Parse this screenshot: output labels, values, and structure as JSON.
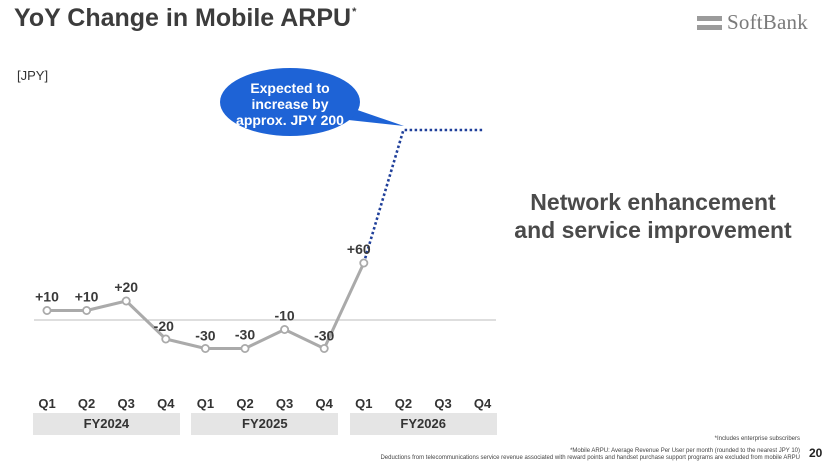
{
  "header": {
    "title": "YoY Change in Mobile ARPU",
    "title_marker": "*",
    "logo_text": "SoftBank"
  },
  "callout": {
    "lines": [
      "Expected to",
      "increase by",
      "approx. JPY 200"
    ],
    "color": "#1e63d6"
  },
  "message": {
    "lines": [
      "Network enhancement",
      "and service improvement"
    ]
  },
  "chart_data": {
    "type": "line",
    "ylabel": "[JPY]",
    "categories": [
      "Q1",
      "Q2",
      "Q3",
      "Q4",
      "Q1",
      "Q2",
      "Q3",
      "Q4",
      "Q1",
      "Q2",
      "Q3",
      "Q4"
    ],
    "groups": [
      {
        "label": "FY2024",
        "start": 0,
        "end": 3
      },
      {
        "label": "FY2025",
        "start": 4,
        "end": 7
      },
      {
        "label": "FY2026",
        "start": 8,
        "end": 11
      }
    ],
    "series": [
      {
        "values": [
          10,
          10,
          20,
          -20,
          -30,
          -30,
          -10,
          -30,
          60,
          null,
          null,
          null
        ],
        "labels": [
          "+10",
          "+10",
          "+20",
          "-20",
          "-30",
          "-30",
          "-10",
          "-30",
          "+60",
          "",
          "",
          ""
        ],
        "color": "#aaaaaa"
      },
      {
        "style": "dotted",
        "values": [
          null,
          null,
          null,
          null,
          null,
          null,
          null,
          null,
          60,
          200,
          200,
          200
        ],
        "color": "#1f3f9a"
      }
    ],
    "baseline": 0
  },
  "footnotes": [
    "*Includes enterprise subscribers",
    "*Mobile ARPU: Average Revenue Per User per month (rounded to the nearest JPY 10)",
    "Deductions from telecommunications service revenue associated with reward points and handset purchase support programs are excluded from mobile ARPU"
  ],
  "page_number": "20"
}
